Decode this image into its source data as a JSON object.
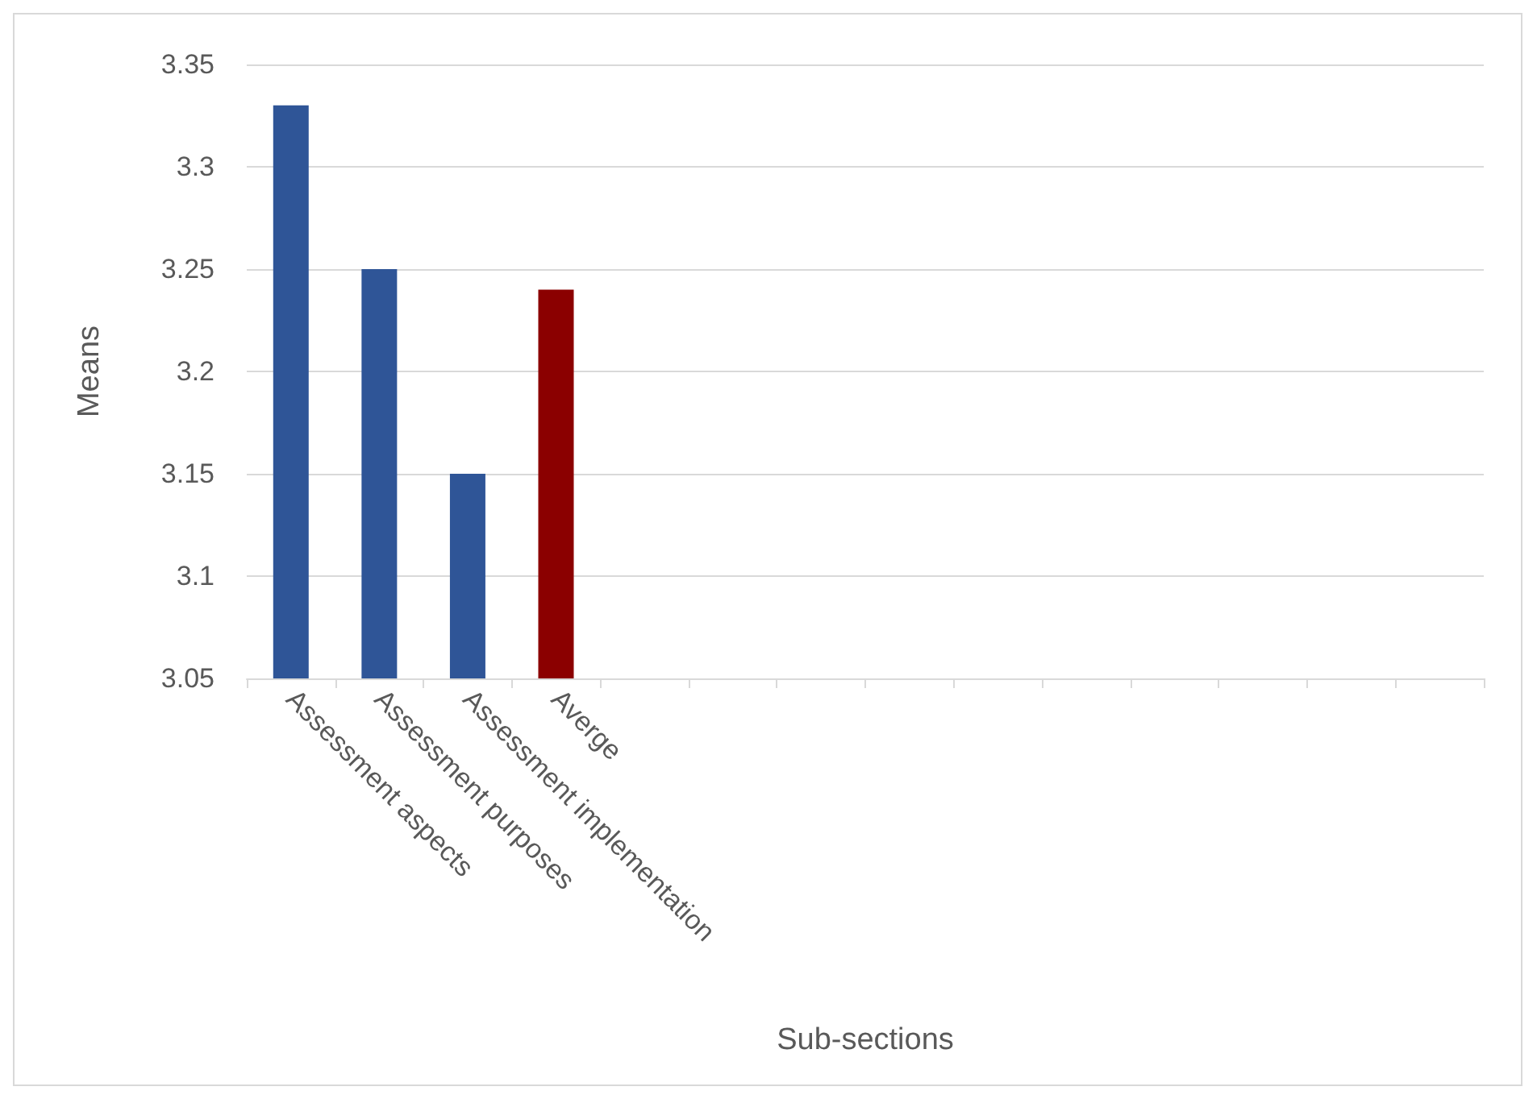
{
  "chart_data": {
    "type": "bar",
    "xlabel": "Sub-sections",
    "ylabel": "Means",
    "categories": [
      "Assessment aspects",
      "Assessment purposes",
      "Assessment implementation",
      "Averge",
      null,
      null,
      null,
      null,
      null,
      null,
      null,
      null,
      null,
      null
    ],
    "values": [
      3.33,
      3.25,
      3.15,
      3.24,
      null,
      null,
      null,
      null,
      null,
      null,
      null,
      null,
      null,
      null
    ],
    "colors": [
      "#2f5597",
      "#2f5597",
      "#2f5597",
      "#8b0000",
      null,
      null,
      null,
      null,
      null,
      null,
      null,
      null,
      null,
      null
    ],
    "ylim": [
      3.05,
      3.35
    ],
    "yticks": [
      3.05,
      3.1,
      3.15,
      3.2,
      3.25,
      3.3,
      3.35
    ],
    "grid": "y"
  }
}
